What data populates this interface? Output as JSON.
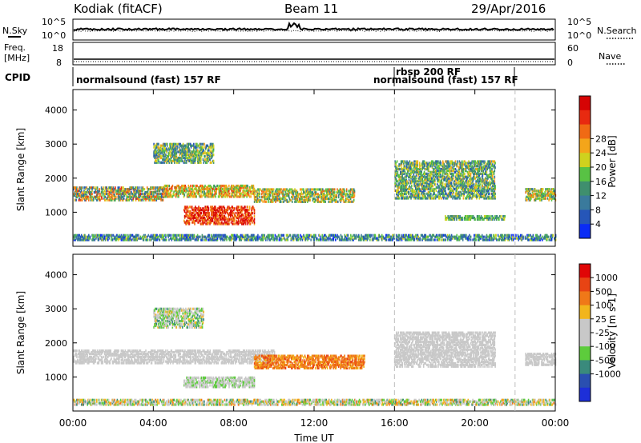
{
  "header": {
    "station": "Kodiak (fitACF)",
    "beam": "Beam 11",
    "date": "29/Apr/2016"
  },
  "noise_panel": {
    "left_label": "N.Sky",
    "left_ticks": [
      "10^5",
      "10^0"
    ],
    "right_label": "N.Search",
    "right_ticks": [
      "10^5",
      "10^0"
    ]
  },
  "freq_panel": {
    "left_label_1": "Freq.",
    "left_label_2": "[MHz]",
    "left_ticks": [
      "18",
      "8"
    ],
    "right_label": "Nave",
    "right_ticks": [
      "60",
      "0"
    ]
  },
  "cpid": {
    "label": "CPID",
    "modes": [
      {
        "text": "normalsound (fast) 157 RF",
        "start_hour": 0
      },
      {
        "text": "rbsp 200 RF",
        "start_hour": 16
      },
      {
        "text": "normalsound (fast) 157 RF",
        "start_hour": 16
      }
    ],
    "boundaries_hours": [
      16,
      22
    ]
  },
  "chart_data": [
    {
      "type": "heatmap",
      "name": "power",
      "xlabel": "Time UT",
      "ylabel": "Slant Range [km]",
      "xlim": [
        0,
        24
      ],
      "ylim": [
        0,
        4600
      ],
      "yticks": [
        "1000",
        "2000",
        "3000",
        "4000"
      ],
      "xticks": [
        "00:00",
        "04:00",
        "08:00",
        "12:00",
        "16:00",
        "20:00",
        "00:00"
      ],
      "colorbar": {
        "label": "Power [dB]",
        "ticks": [
          "4",
          "8",
          "12",
          "16",
          "20",
          "24",
          "28"
        ],
        "colors": [
          "#0a2cf5",
          "#2656b8",
          "#3a7a9c",
          "#3f8f6e",
          "#58c244",
          "#cfd21e",
          "#f4a51a",
          "#f06a14",
          "#e82a10",
          "#d60404"
        ]
      },
      "scatter_regions": [
        {
          "t": [
            0.0,
            4.5
          ],
          "r": [
            1350,
            1750
          ],
          "level": [
            1,
            8
          ]
        },
        {
          "t": [
            4.5,
            9.0
          ],
          "r": [
            1450,
            1800
          ],
          "level": [
            3,
            8
          ]
        },
        {
          "t": [
            9.0,
            14.0
          ],
          "r": [
            1300,
            1700
          ],
          "level": [
            2,
            7
          ]
        },
        {
          "t": [
            4.0,
            7.0
          ],
          "r": [
            2450,
            3000
          ],
          "level": [
            1,
            6
          ]
        },
        {
          "t": [
            5.5,
            9.0
          ],
          "r": [
            650,
            1150
          ],
          "level": [
            6,
            10
          ]
        },
        {
          "t": [
            16.0,
            21.0
          ],
          "r": [
            1400,
            2500
          ],
          "level": [
            1,
            6
          ]
        },
        {
          "t": [
            22.5,
            24.0
          ],
          "r": [
            1350,
            1700
          ],
          "level": [
            2,
            7
          ]
        },
        {
          "t": [
            18.5,
            21.5
          ],
          "r": [
            780,
            880
          ],
          "level": [
            2,
            5
          ]
        },
        {
          "t": [
            0.0,
            24.0
          ],
          "r": [
            180,
            320
          ],
          "level": [
            0,
            5
          ]
        }
      ]
    },
    {
      "type": "heatmap",
      "name": "velocity",
      "xlabel": "Time UT",
      "ylabel": "Slant Range [km]",
      "xlim": [
        0,
        24
      ],
      "ylim": [
        0,
        4600
      ],
      "yticks": [
        "1000",
        "2000",
        "3000",
        "4000"
      ],
      "xticks": [
        "00:00",
        "04:00",
        "08:00",
        "12:00",
        "16:00",
        "20:00",
        "00:00"
      ],
      "colorbar": {
        "label": "Velocity [m s-1]",
        "ticks": [
          "1000",
          "500",
          "100",
          "25",
          "-25",
          "-100",
          "-500",
          "-1000"
        ],
        "colors": [
          "#1d2fd8",
          "#2a4fb0",
          "#3a8a7c",
          "#5dcc3c",
          "#c8c8c8",
          "#c8c8c8",
          "#f2b51c",
          "#f07818",
          "#e84414",
          "#e00606"
        ]
      },
      "scatter_regions": [
        {
          "t": [
            0.0,
            10.0
          ],
          "r": [
            1400,
            1800
          ],
          "level": [
            4,
            5
          ]
        },
        {
          "t": [
            9.0,
            14.5
          ],
          "r": [
            1250,
            1650
          ],
          "level": [
            6,
            8
          ]
        },
        {
          "t": [
            5.5,
            9.0
          ],
          "r": [
            700,
            1000
          ],
          "level": [
            3,
            5
          ]
        },
        {
          "t": [
            4.0,
            6.5
          ],
          "r": [
            2450,
            3000
          ],
          "level": [
            2,
            6
          ]
        },
        {
          "t": [
            16.0,
            21.0
          ],
          "r": [
            1300,
            2300
          ],
          "level": [
            4,
            5
          ]
        },
        {
          "t": [
            22.5,
            24.0
          ],
          "r": [
            1350,
            1700
          ],
          "level": [
            4,
            5
          ]
        },
        {
          "t": [
            0.0,
            24.0
          ],
          "r": [
            180,
            320
          ],
          "level": [
            2,
            7
          ]
        }
      ]
    }
  ]
}
